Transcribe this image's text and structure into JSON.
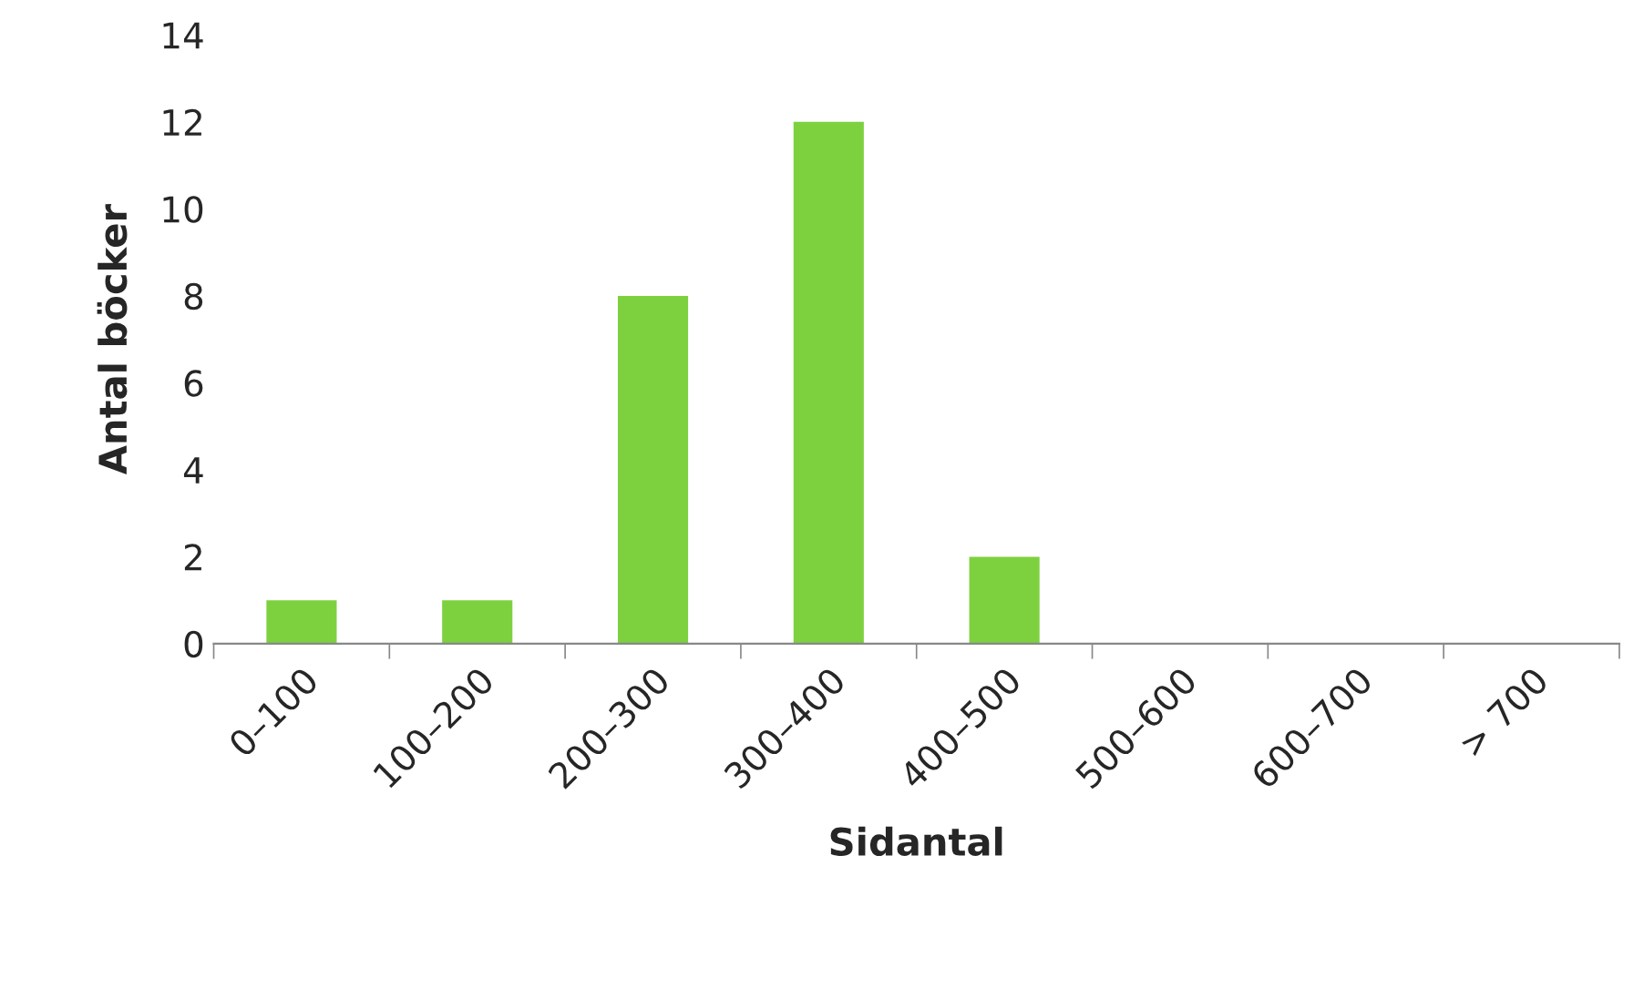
{
  "chart_data": {
    "type": "bar",
    "xlabel": "Sidantal",
    "ylabel": "Antal böcker",
    "categories": [
      "0–100",
      "100–200",
      "200–300",
      "300–400",
      "400–500",
      "500–600",
      "600–700",
      "> 700"
    ],
    "values": [
      1,
      1,
      8,
      12,
      2,
      0,
      0,
      0
    ],
    "color": "#7dd13f",
    "ylim": [
      0,
      14
    ],
    "yticks": [
      0,
      2,
      4,
      6,
      8,
      10,
      12,
      14
    ],
    "grid": false,
    "legend": false
  }
}
